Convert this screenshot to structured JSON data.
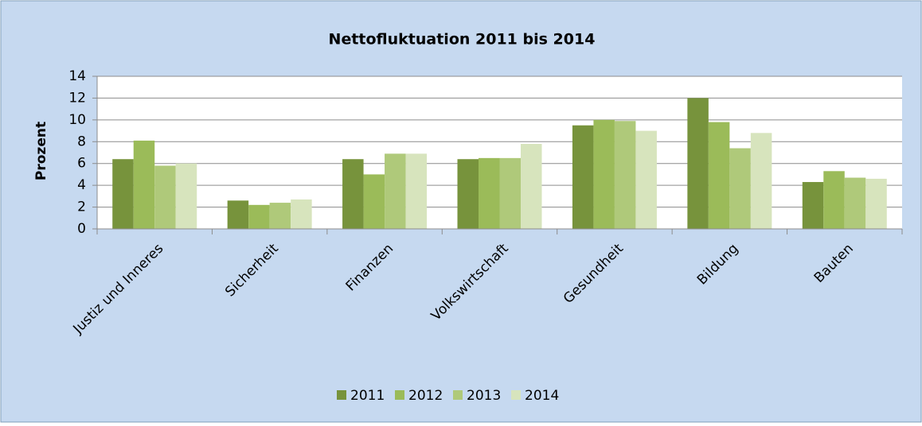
{
  "chart_data": {
    "type": "bar",
    "title": "Nettofluktuation 2011 bis 2014",
    "y_label": "Prozent",
    "categories": [
      "Justiz und Inneres",
      "Sicherheit",
      "Finanzen",
      "Volkswirtschaft",
      "Gesundheit",
      "Bildung",
      "Bauten"
    ],
    "series": [
      {
        "name": "2011",
        "color": "#77933c",
        "values": [
          6.4,
          2.6,
          6.4,
          6.4,
          9.5,
          12.0,
          4.3
        ]
      },
      {
        "name": "2012",
        "color": "#9bbb59",
        "values": [
          8.1,
          2.2,
          5.0,
          6.5,
          10.0,
          9.8,
          5.3
        ]
      },
      {
        "name": "2013",
        "color": "#afc97a",
        "values": [
          5.8,
          2.4,
          6.9,
          6.5,
          9.9,
          7.4,
          4.7
        ]
      },
      {
        "name": "2014",
        "color": "#d7e4bd",
        "values": [
          6.0,
          2.7,
          6.9,
          7.8,
          9.0,
          8.8,
          4.6
        ]
      }
    ],
    "ylim": [
      0,
      14
    ],
    "yticks": [
      0,
      2,
      4,
      6,
      8,
      10,
      12,
      14
    ],
    "grid": true,
    "legend": "bottom"
  }
}
